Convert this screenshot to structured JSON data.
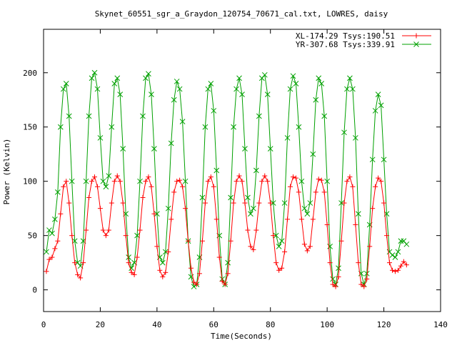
{
  "chart_data": {
    "type": "line",
    "title": "Skynet_60551_sgr_a_Graydon_120754_70671_cal.txt, LOWRES, daisy",
    "xlabel": "Time(Seconds)",
    "ylabel": "Power (Kelvin)",
    "xlim": [
      0,
      140
    ],
    "ylim": [
      -20,
      240
    ],
    "xticks": [
      0,
      20,
      40,
      60,
      80,
      100,
      120,
      140
    ],
    "yticks": [
      0,
      50,
      100,
      150,
      200
    ],
    "grid": false,
    "legend_position": "top-right",
    "series": [
      {
        "name": "XL-174.29 Tsys:190.51",
        "color": "#ff0000",
        "marker": "plus",
        "x": [
          1,
          2,
          3,
          4,
          5,
          6,
          7,
          8,
          9,
          10,
          11,
          12,
          13,
          14,
          15,
          16,
          17,
          18,
          19,
          20,
          21,
          22,
          23,
          24,
          25,
          26,
          27,
          28,
          29,
          30,
          31,
          32,
          33,
          34,
          35,
          36,
          37,
          38,
          39,
          40,
          41,
          42,
          43,
          44,
          45,
          46,
          47,
          48,
          49,
          50,
          51,
          52,
          53,
          54,
          55,
          56,
          57,
          58,
          59,
          60,
          61,
          62,
          63,
          64,
          65,
          66,
          67,
          68,
          69,
          70,
          71,
          72,
          73,
          74,
          75,
          76,
          77,
          78,
          79,
          80,
          81,
          82,
          83,
          84,
          85,
          86,
          87,
          88,
          89,
          90,
          91,
          92,
          93,
          94,
          95,
          96,
          97,
          98,
          99,
          100,
          101,
          102,
          103,
          104,
          105,
          106,
          107,
          108,
          109,
          110,
          111,
          112,
          113,
          114,
          115,
          116,
          117,
          118,
          119,
          120,
          121,
          122,
          123,
          124,
          125,
          126,
          127,
          128
        ],
        "y": [
          17,
          28,
          30,
          38,
          45,
          70,
          95,
          100,
          80,
          50,
          25,
          14,
          11,
          25,
          55,
          85,
          100,
          104,
          95,
          75,
          55,
          50,
          55,
          80,
          100,
          105,
          100,
          80,
          50,
          25,
          16,
          14,
          30,
          55,
          85,
          100,
          104,
          95,
          70,
          40,
          18,
          12,
          16,
          35,
          65,
          90,
          100,
          101,
          95,
          75,
          45,
          20,
          7,
          5,
          15,
          45,
          80,
          100,
          104,
          95,
          65,
          30,
          8,
          5,
          15,
          45,
          80,
          100,
          105,
          100,
          80,
          55,
          40,
          37,
          55,
          80,
          100,
          105,
          100,
          80,
          50,
          25,
          18,
          20,
          35,
          65,
          95,
          104,
          103,
          90,
          65,
          42,
          36,
          40,
          65,
          90,
          102,
          101,
          90,
          60,
          25,
          5,
          3,
          12,
          45,
          80,
          100,
          104,
          95,
          60,
          25,
          5,
          3,
          10,
          40,
          75,
          95,
          103,
          100,
          80,
          50,
          25,
          18,
          17,
          18,
          22,
          26,
          23
        ]
      },
      {
        "name": "YR-307.68 Tsys:339.91",
        "color": "#00a000",
        "marker": "cross",
        "x": [
          1,
          2,
          3,
          4,
          5,
          6,
          7,
          8,
          9,
          10,
          11,
          12,
          13,
          14,
          15,
          16,
          17,
          18,
          19,
          20,
          21,
          22,
          23,
          24,
          25,
          26,
          27,
          28,
          29,
          30,
          31,
          32,
          33,
          34,
          35,
          36,
          37,
          38,
          39,
          40,
          41,
          42,
          43,
          44,
          45,
          46,
          47,
          48,
          49,
          50,
          51,
          52,
          53,
          54,
          55,
          56,
          57,
          58,
          59,
          60,
          61,
          62,
          63,
          64,
          65,
          66,
          67,
          68,
          69,
          70,
          71,
          72,
          73,
          74,
          75,
          76,
          77,
          78,
          79,
          80,
          81,
          82,
          83,
          84,
          85,
          86,
          87,
          88,
          89,
          90,
          91,
          92,
          93,
          94,
          95,
          96,
          97,
          98,
          99,
          100,
          101,
          102,
          103,
          104,
          105,
          106,
          107,
          108,
          109,
          110,
          111,
          112,
          113,
          114,
          115,
          116,
          117,
          118,
          119,
          120,
          121,
          122,
          123,
          124,
          125,
          126,
          127,
          128
        ],
        "y": [
          35,
          55,
          52,
          65,
          90,
          150,
          185,
          190,
          160,
          100,
          45,
          25,
          22,
          45,
          100,
          160,
          195,
          200,
          185,
          140,
          100,
          95,
          105,
          150,
          190,
          195,
          180,
          130,
          70,
          30,
          20,
          25,
          50,
          100,
          160,
          195,
          199,
          180,
          130,
          70,
          30,
          25,
          35,
          75,
          135,
          175,
          192,
          185,
          155,
          100,
          45,
          12,
          3,
          5,
          30,
          85,
          150,
          185,
          190,
          165,
          110,
          50,
          10,
          5,
          25,
          85,
          150,
          185,
          195,
          180,
          130,
          85,
          70,
          75,
          110,
          160,
          195,
          198,
          180,
          130,
          80,
          50,
          40,
          45,
          80,
          140,
          185,
          197,
          190,
          150,
          100,
          75,
          70,
          80,
          125,
          175,
          195,
          190,
          160,
          100,
          40,
          10,
          5,
          20,
          80,
          145,
          185,
          195,
          185,
          140,
          70,
          15,
          5,
          15,
          60,
          120,
          165,
          180,
          170,
          120,
          70,
          35,
          32,
          30,
          35,
          45,
          45,
          42
        ]
      }
    ]
  }
}
